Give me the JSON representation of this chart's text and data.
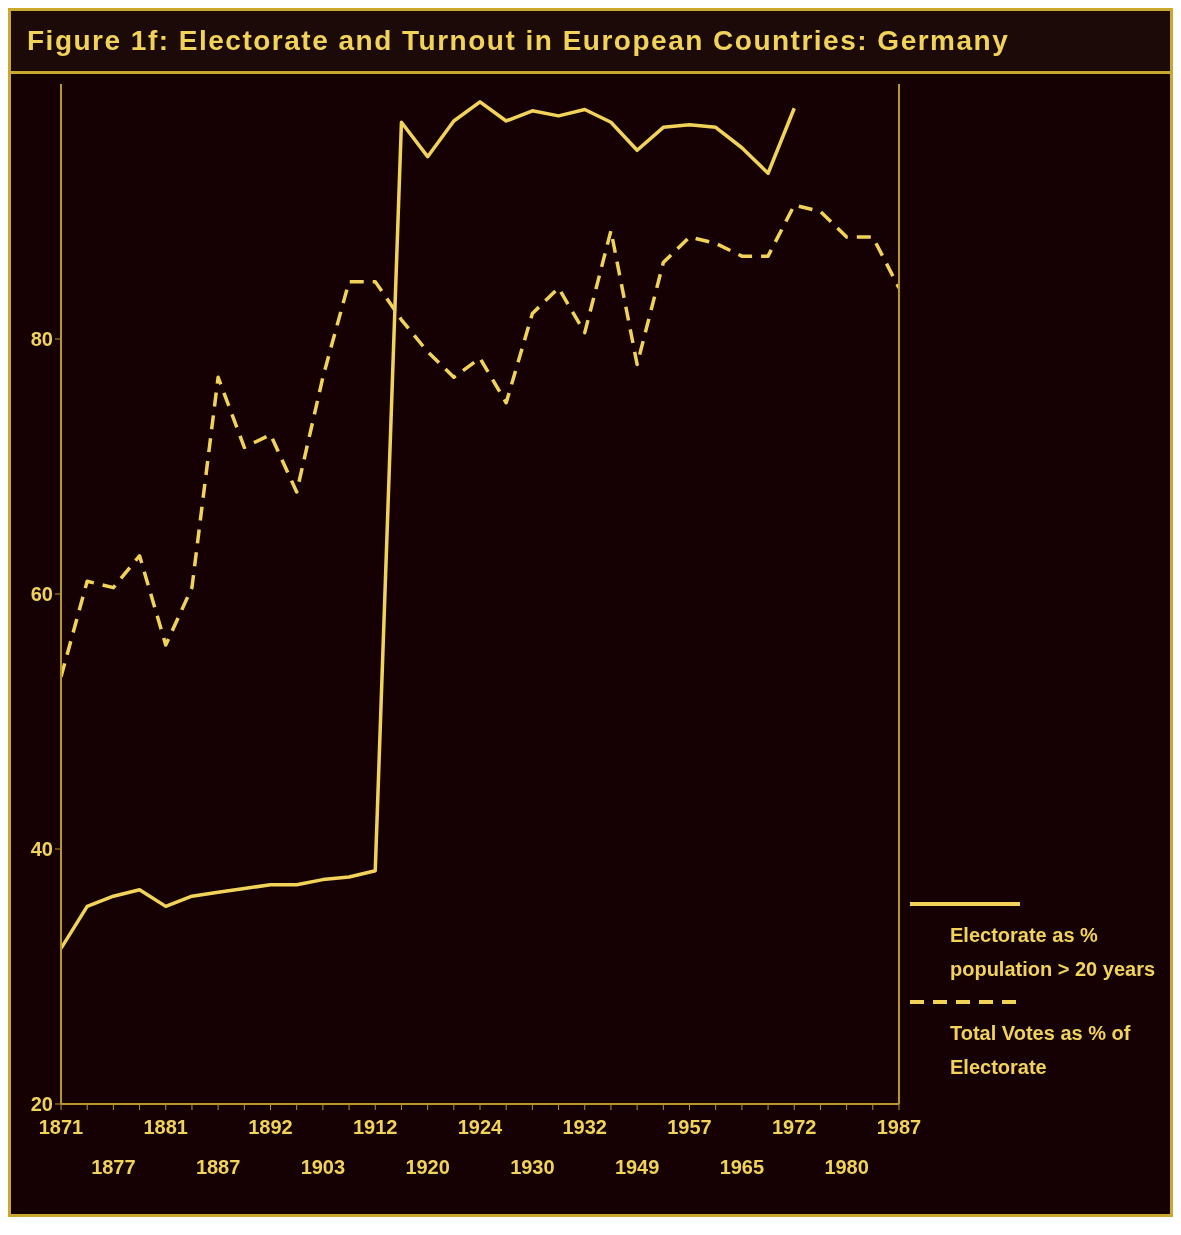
{
  "chart_data": {
    "type": "line",
    "title": "Figure 1f: Electorate and Turnout in European Countries: Germany",
    "categories": [
      "1871",
      null,
      "1877",
      null,
      "1881",
      null,
      "1887",
      null,
      "1892",
      null,
      "1903",
      null,
      "1912",
      null,
      "1920",
      null,
      "1924",
      null,
      "1930",
      null,
      "1932",
      null,
      "1949",
      null,
      "1957",
      null,
      "1965",
      null,
      "1972",
      null,
      "1980",
      null,
      "1987"
    ],
    "series": [
      {
        "name": "Electorate as % population > 20 years",
        "color": "#f2d35a",
        "line_style": "solid",
        "values": [
          32.2,
          35.5,
          36.3,
          36.8,
          35.5,
          36.3,
          36.6,
          36.9,
          37.2,
          37.2,
          37.6,
          37.8,
          38.3,
          97,
          94.3,
          97.1,
          98.6,
          97.1,
          97.9,
          97.5,
          98,
          97,
          94.8,
          96.6,
          96.8,
          96.6,
          95,
          93,
          98.1,
          null,
          null,
          null,
          null
        ]
      },
      {
        "name": "Total Votes as % of Electorate",
        "color": "#f2d35a",
        "line_style": "dashed",
        "values": [
          53.5,
          61,
          60.5,
          63,
          56,
          60.5,
          77,
          71.5,
          72.5,
          68,
          77,
          84.5,
          84.5,
          81.5,
          79,
          77,
          78.5,
          75,
          82,
          84,
          80.5,
          88.5,
          78,
          86,
          88,
          87.5,
          86.5,
          86.5,
          90.5,
          90,
          88,
          88,
          84
        ]
      }
    ],
    "ylim": [
      20,
      100
    ],
    "yticks": [
      20,
      40,
      60,
      80
    ],
    "legend": "bottom right",
    "marker": "none"
  }
}
